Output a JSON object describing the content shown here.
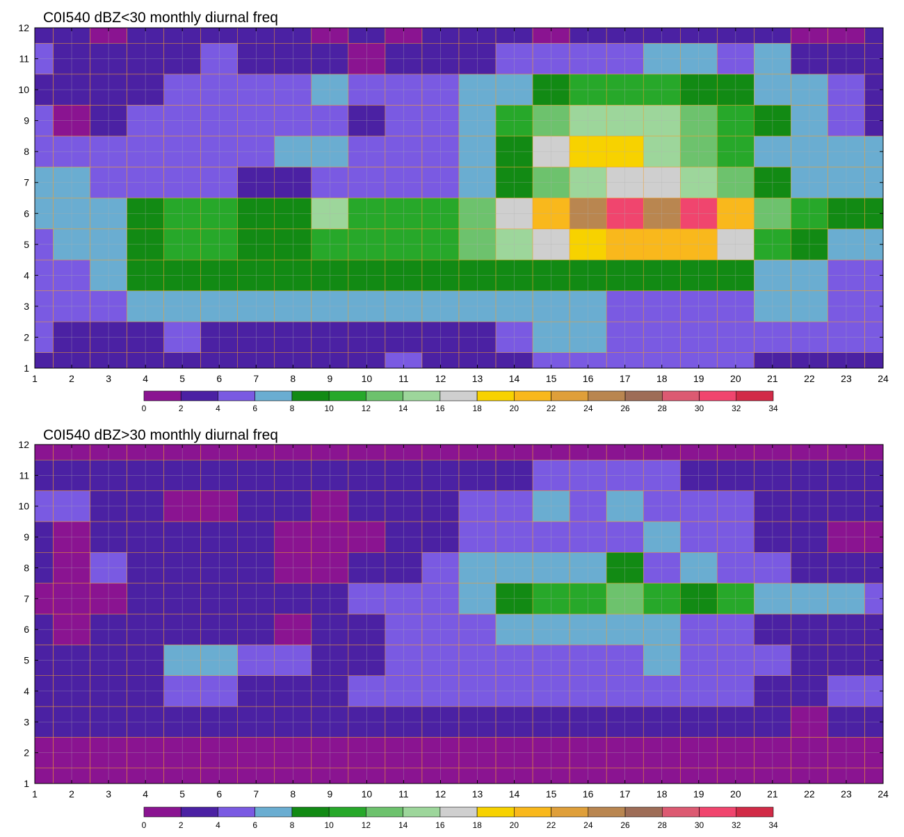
{
  "chart_data": [
    {
      "type": "heatmap",
      "title": "C0I540 dBZ<30 monthly diurnal freq",
      "xlabel": "",
      "ylabel": "",
      "x": [
        1,
        2,
        3,
        4,
        5,
        6,
        7,
        8,
        9,
        10,
        11,
        12,
        13,
        14,
        15,
        16,
        17,
        18,
        19,
        20,
        21,
        22,
        23,
        24
      ],
      "y": [
        1,
        2,
        3,
        4,
        5,
        6,
        7,
        8,
        9,
        10,
        11,
        12
      ],
      "xlim": [
        1,
        24
      ],
      "ylim": [
        1,
        12
      ],
      "grid": true,
      "contour_lines": true,
      "z": [
        [
          2,
          3,
          3,
          3,
          3,
          3,
          3,
          3,
          3,
          3,
          4,
          3,
          3,
          3,
          5,
          5,
          5,
          5,
          5,
          5,
          3,
          3,
          3,
          3
        ],
        [
          4,
          3,
          3,
          3,
          4,
          3,
          3,
          3,
          3,
          3,
          3,
          3,
          3,
          5,
          7,
          7,
          5,
          5,
          5,
          5,
          5,
          5,
          5,
          5
        ],
        [
          5,
          5,
          5,
          7,
          7,
          7,
          7,
          7,
          7,
          7,
          7,
          7,
          7,
          7,
          7,
          7,
          5,
          5,
          5,
          5,
          7,
          7,
          5,
          5
        ],
        [
          5,
          5,
          7,
          9,
          9,
          9,
          9,
          9,
          9,
          9,
          9,
          9,
          9,
          9,
          9,
          9,
          9,
          9,
          9,
          9,
          7,
          7,
          5,
          5
        ],
        [
          5,
          7,
          7,
          9,
          11,
          11,
          9,
          9,
          11,
          11,
          11,
          11,
          13,
          15,
          17,
          19,
          21,
          21,
          21,
          17,
          11,
          9,
          7,
          7
        ],
        [
          7,
          7,
          7,
          9,
          11,
          11,
          9,
          9,
          15,
          11,
          11,
          11,
          13,
          17,
          21,
          25,
          31,
          25,
          31,
          21,
          13,
          11,
          9,
          9
        ],
        [
          7,
          7,
          5,
          5,
          5,
          5,
          3,
          3,
          5,
          5,
          5,
          5,
          7,
          9,
          13,
          15,
          17,
          17,
          15,
          13,
          9,
          7,
          7,
          7
        ],
        [
          5,
          5,
          5,
          5,
          5,
          5,
          5,
          7,
          7,
          5,
          5,
          5,
          7,
          9,
          17,
          19,
          19,
          15,
          13,
          11,
          7,
          7,
          7,
          7
        ],
        [
          5,
          1,
          3,
          5,
          5,
          5,
          5,
          5,
          5,
          3,
          5,
          5,
          7,
          11,
          13,
          15,
          15,
          15,
          13,
          11,
          9,
          7,
          5,
          3
        ],
        [
          3,
          3,
          3,
          3,
          5,
          5,
          5,
          5,
          7,
          5,
          5,
          5,
          7,
          7,
          9,
          11,
          11,
          11,
          9,
          9,
          7,
          7,
          5,
          3
        ],
        [
          5,
          3,
          3,
          3,
          3,
          5,
          3,
          3,
          3,
          1,
          3,
          3,
          3,
          5,
          5,
          5,
          5,
          7,
          7,
          5,
          7,
          3,
          3,
          3
        ],
        [
          3,
          3,
          1,
          3,
          3,
          3,
          3,
          3,
          1,
          3,
          1,
          3,
          3,
          3,
          1,
          3,
          3,
          3,
          3,
          3,
          3,
          1,
          1,
          3
        ]
      ]
    },
    {
      "type": "heatmap",
      "title": "C0I540 dBZ>30 monthly diurnal freq",
      "xlabel": "",
      "ylabel": "",
      "x": [
        1,
        2,
        3,
        4,
        5,
        6,
        7,
        8,
        9,
        10,
        11,
        12,
        13,
        14,
        15,
        16,
        17,
        18,
        19,
        20,
        21,
        22,
        23,
        24
      ],
      "y": [
        1,
        2,
        3,
        4,
        5,
        6,
        7,
        8,
        9,
        10,
        11,
        12
      ],
      "xlim": [
        1,
        24
      ],
      "ylim": [
        1,
        12
      ],
      "grid": true,
      "contour_lines": true,
      "z": [
        [
          1,
          1,
          1,
          1,
          1,
          1,
          1,
          1,
          1,
          1,
          1,
          1,
          1,
          1,
          1,
          1,
          1,
          1,
          1,
          1,
          1,
          1,
          1,
          1
        ],
        [
          1,
          1,
          1,
          1,
          1,
          1,
          1,
          1,
          1,
          1,
          1,
          1,
          1,
          1,
          1,
          1,
          1,
          1,
          1,
          1,
          1,
          1,
          1,
          1
        ],
        [
          3,
          3,
          3,
          3,
          3,
          3,
          3,
          3,
          3,
          3,
          3,
          3,
          3,
          3,
          3,
          3,
          3,
          3,
          3,
          3,
          3,
          1,
          3,
          3
        ],
        [
          3,
          3,
          3,
          3,
          5,
          5,
          3,
          3,
          3,
          5,
          5,
          5,
          5,
          5,
          5,
          5,
          5,
          5,
          5,
          5,
          3,
          3,
          5,
          5
        ],
        [
          3,
          3,
          3,
          3,
          7,
          7,
          5,
          5,
          3,
          3,
          5,
          5,
          5,
          5,
          5,
          5,
          5,
          7,
          5,
          5,
          5,
          3,
          3,
          3
        ],
        [
          3,
          1,
          3,
          3,
          3,
          3,
          3,
          1,
          3,
          3,
          5,
          5,
          5,
          7,
          7,
          7,
          7,
          7,
          5,
          5,
          3,
          3,
          3,
          3
        ],
        [
          1,
          1,
          1,
          3,
          3,
          3,
          3,
          3,
          3,
          5,
          5,
          5,
          7,
          9,
          11,
          11,
          13,
          11,
          9,
          11,
          7,
          7,
          7,
          5
        ],
        [
          3,
          1,
          5,
          3,
          3,
          3,
          3,
          1,
          1,
          3,
          3,
          5,
          7,
          7,
          7,
          7,
          9,
          5,
          7,
          5,
          5,
          3,
          3,
          3
        ],
        [
          3,
          1,
          3,
          3,
          3,
          3,
          3,
          1,
          1,
          1,
          3,
          3,
          5,
          5,
          5,
          5,
          5,
          7,
          5,
          5,
          3,
          3,
          1,
          1
        ],
        [
          5,
          5,
          3,
          3,
          1,
          1,
          3,
          3,
          1,
          3,
          3,
          3,
          5,
          5,
          7,
          5,
          7,
          5,
          5,
          5,
          3,
          3,
          3,
          3
        ],
        [
          3,
          3,
          3,
          3,
          3,
          3,
          3,
          3,
          3,
          3,
          3,
          3,
          3,
          3,
          5,
          5,
          5,
          5,
          3,
          3,
          3,
          3,
          3,
          3
        ],
        [
          1,
          1,
          1,
          1,
          1,
          1,
          1,
          1,
          1,
          1,
          1,
          1,
          1,
          1,
          1,
          1,
          1,
          1,
          1,
          1,
          1,
          1,
          1,
          1
        ]
      ]
    }
  ],
  "colorbar": {
    "levels": [
      0,
      2,
      4,
      6,
      8,
      10,
      12,
      14,
      16,
      18,
      20,
      22,
      24,
      26,
      28,
      30,
      32,
      34
    ],
    "colors": [
      "#8a1491",
      "#4b21a3",
      "#7a5ae2",
      "#6aadd1",
      "#128a14",
      "#27a82a",
      "#6dc26d",
      "#9dd69b",
      "#cfcfcf",
      "#f7d200",
      "#f9b81c",
      "#df9f3a",
      "#b98650",
      "#9e6d57",
      "#dc5a72",
      "#f0456e",
      "#d12b47"
    ]
  },
  "style": {
    "contour_line_color": "#f0a030",
    "grid_color": "#b0b0b0",
    "frame_color": "#000000"
  }
}
